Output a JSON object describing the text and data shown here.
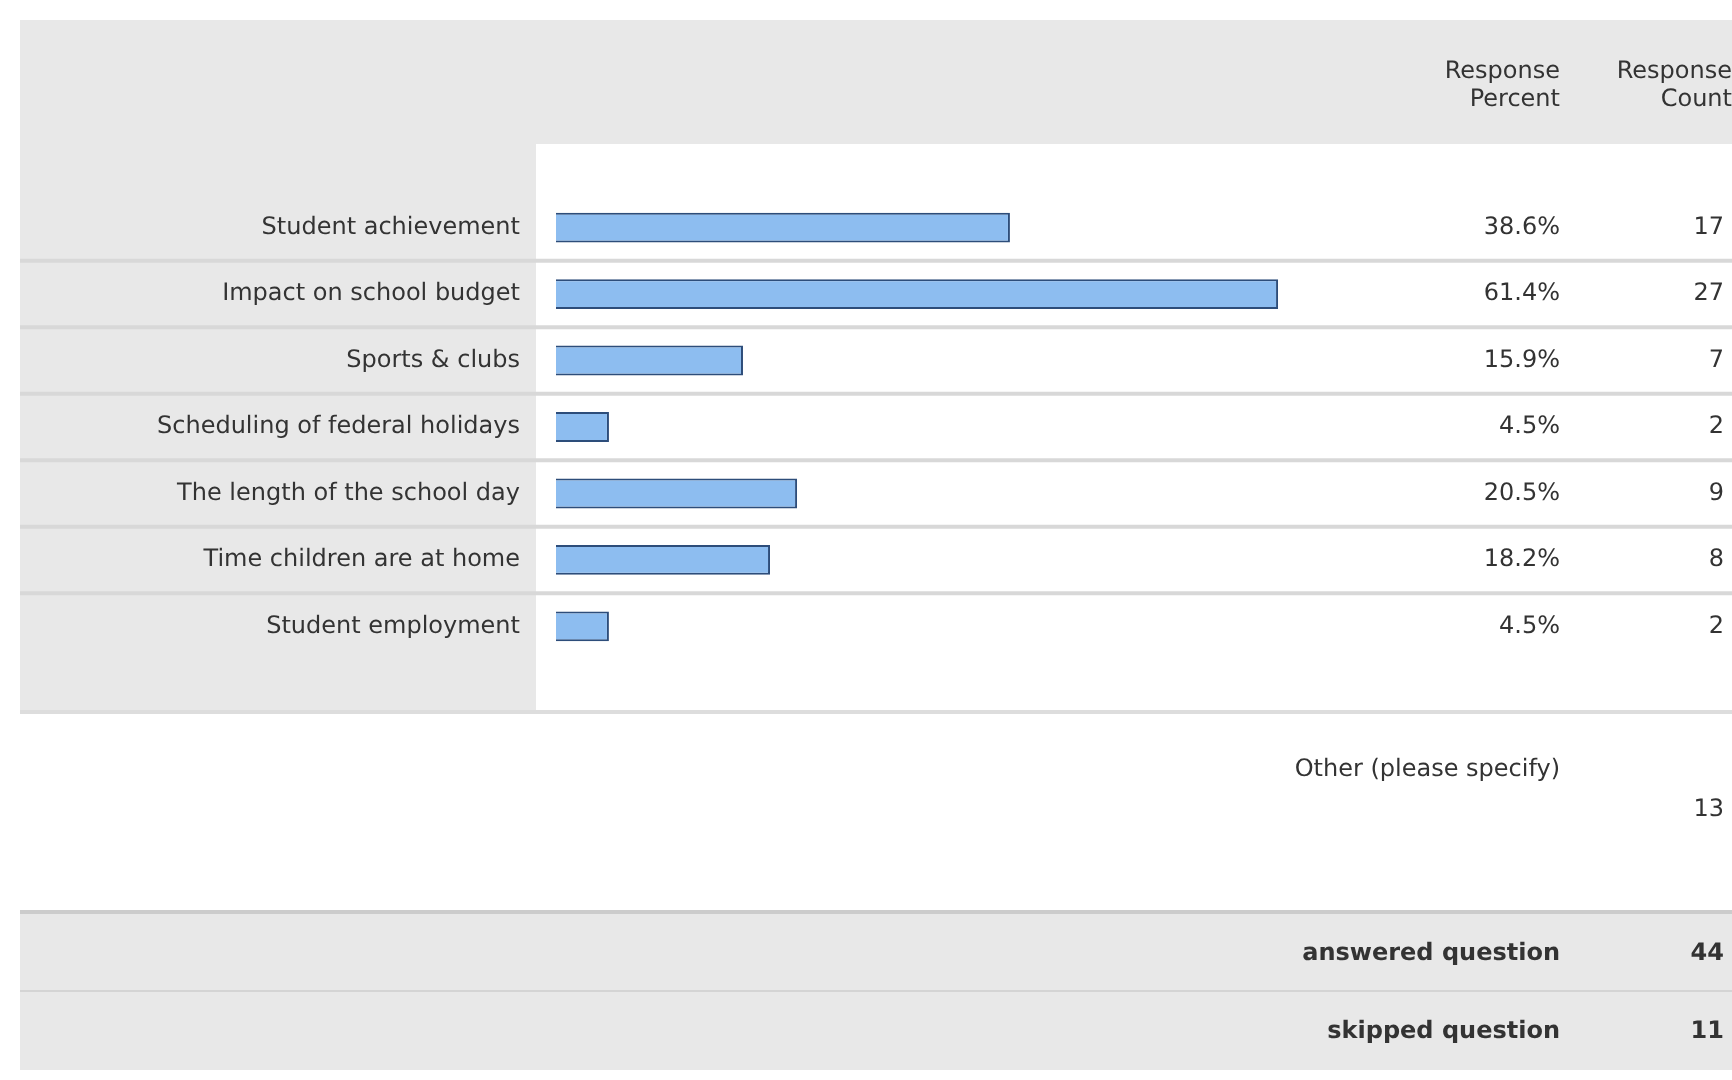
{
  "chart_data": {
    "type": "bar",
    "orientation": "horizontal",
    "tick_labels": "y",
    "grid": false,
    "legend": false,
    "categories": [
      "Student achievement",
      "Impact on school budget",
      "Sports & clubs",
      "Scheduling of federal holidays",
      "The length of the school day",
      "Time children are at home",
      "Student employment"
    ],
    "values": [
      38.6,
      61.4,
      15.9,
      4.5,
      20.5,
      18.2,
      4.5
    ],
    "value_labels": [
      "38.6%",
      "61.4%",
      "15.9%",
      "4.5%",
      "20.5%",
      "18.2%",
      "4.5%"
    ],
    "color": "#8dbdf0",
    "xlim": [
      0,
      100
    ],
    "annotations": [
      "Response Percent",
      "Response Count",
      "17",
      "27",
      "7",
      "2",
      "9",
      "8",
      "2",
      "Other (please specify)",
      "13",
      "answered question",
      "44",
      "skipped question",
      "11"
    ]
  }
}
